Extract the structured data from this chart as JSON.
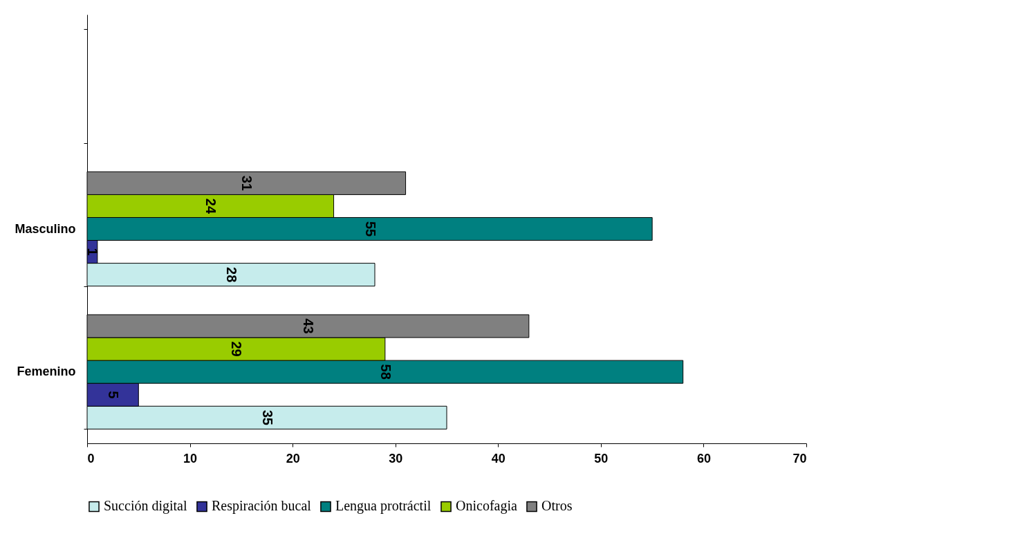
{
  "chart_data": {
    "type": "bar",
    "orientation": "horizontal",
    "categories": [
      null,
      "Masculino",
      "Femenino"
    ],
    "series": [
      {
        "name": "Succión digital",
        "color": "#c6ecec",
        "values": [
          null,
          28,
          35
        ]
      },
      {
        "name": "Respiración bucal",
        "color": "#333399",
        "values": [
          null,
          1,
          5
        ]
      },
      {
        "name": "Lengua protráctil",
        "color": "#008080",
        "values": [
          null,
          55,
          58
        ]
      },
      {
        "name": "Onicofagia",
        "color": "#99cc00",
        "values": [
          null,
          24,
          29
        ]
      },
      {
        "name": "Otros",
        "color": "#808080",
        "values": [
          null,
          31,
          43
        ]
      }
    ],
    "xlim": [
      0,
      70
    ],
    "xticks": [
      0,
      10,
      20,
      30,
      40,
      50,
      60,
      70
    ],
    "data_labels": true,
    "legend": "bottom",
    "grid": false
  }
}
